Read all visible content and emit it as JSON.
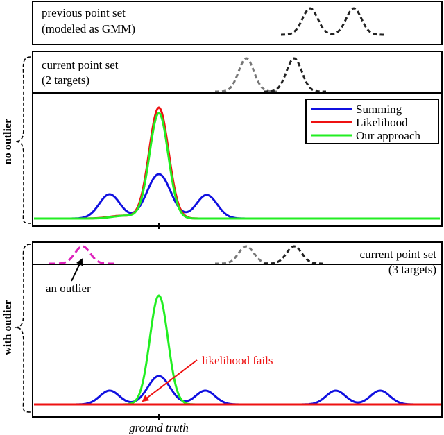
{
  "panel_top": {
    "label_line1": "previous point set",
    "label_line2": "(modeled as GMM)"
  },
  "panel_current_two": {
    "label_line1": "current point set",
    "label_line2": "(2 targets)"
  },
  "panel_no_outlier": {
    "side_label": "no outlier",
    "legend": [
      {
        "name": "Summing",
        "color": "#1010e0"
      },
      {
        "name": "Likelihood",
        "color": "#ee1111"
      },
      {
        "name": "Our approach",
        "color": "#22ee22"
      }
    ]
  },
  "panel_current_three": {
    "label_line1": "current point set",
    "label_line2": "(3 targets)",
    "outlier_label": "an outlier"
  },
  "panel_with_outlier": {
    "side_label": "with outlier",
    "fail_label": "likelihood fails"
  },
  "x_axis": {
    "ground_truth_label": "ground truth"
  },
  "colors": {
    "summing": "#1010e0",
    "likelihood": "#ee1111",
    "ours": "#22ee22",
    "previous": "#222222",
    "current": "#777777",
    "outlier": "#dd22bb",
    "annotation_red": "#ee1111"
  }
}
